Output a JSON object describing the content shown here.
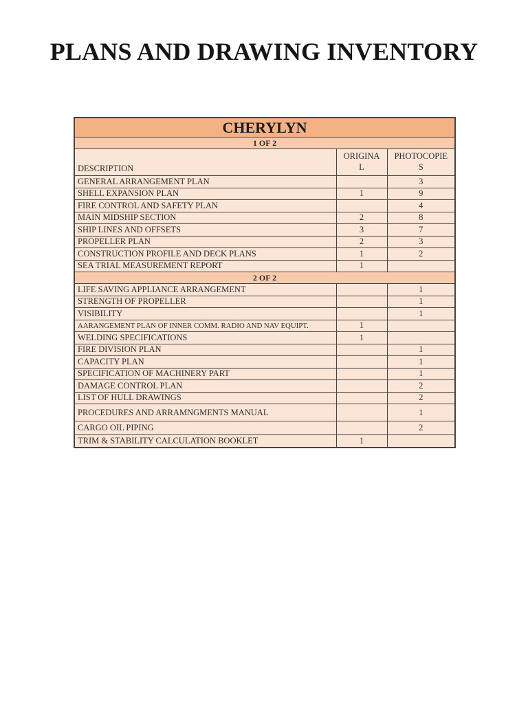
{
  "page": {
    "title": "PLANS AND DRAWING INVENTORY"
  },
  "table": {
    "vessel_name": "CHERYLYN",
    "columns": {
      "description": "DESCRIPTION",
      "original": "ORIGINAL",
      "photocopies": "PHOTOCOPIES"
    },
    "colors": {
      "vessel_header_bg": "#F4B183",
      "section_bg": "#F8CBAD",
      "row_bg": "#FBE5D6",
      "border": "#444444"
    },
    "sections": [
      {
        "label": "1 OF 2",
        "rows": [
          {
            "description": "GENERAL ARRANGEMENT PLAN",
            "original": "",
            "photocopies": "3"
          },
          {
            "description": "SHELL EXPANSION PLAN",
            "original": "1",
            "photocopies": "9"
          },
          {
            "description": "FIRE CONTROL AND SAFETY PLAN",
            "original": "",
            "photocopies": "4"
          },
          {
            "description": "MAIN MIDSHIP SECTION",
            "original": "2",
            "photocopies": "8"
          },
          {
            "description": "SHIP LINES AND OFFSETS",
            "original": "3",
            "photocopies": "7"
          },
          {
            "description": "PROPELLER PLAN",
            "original": "2",
            "photocopies": "3"
          },
          {
            "description": "CONSTRUCTION PROFILE AND DECK PLANS",
            "original": "1",
            "photocopies": "2"
          },
          {
            "description": "SEA TRIAL MEASUREMENT REPORT",
            "original": "1",
            "photocopies": ""
          }
        ]
      },
      {
        "label": "2 OF 2",
        "rows": [
          {
            "description": "LIFE SAVING APPLIANCE ARRANGEMENT",
            "original": "",
            "photocopies": "1"
          },
          {
            "description": "STRENGTH OF PROPELLER",
            "original": "",
            "photocopies": "1"
          },
          {
            "description": "VISIBILITY",
            "original": "",
            "photocopies": "1"
          },
          {
            "description": "AARANGEMENT PLAN OF INNER COMM. RADIO AND NAV EQUIPT.",
            "original": "1",
            "photocopies": "",
            "small": true
          },
          {
            "description": "WELDING SPECIFICATIONS",
            "original": "1",
            "photocopies": ""
          },
          {
            "description": "FIRE DIVISION PLAN",
            "original": "",
            "photocopies": "1"
          },
          {
            "description": "CAPACITY PLAN",
            "original": "",
            "photocopies": "1"
          },
          {
            "description": "SPECIFICATION OF MACHINERY PART",
            "original": "",
            "photocopies": "1"
          },
          {
            "description": "DAMAGE CONTROL PLAN",
            "original": "",
            "photocopies": "2"
          },
          {
            "description": "LIST OF HULL DRAWINGS",
            "original": "",
            "photocopies": "2"
          },
          {
            "description": "PROCEDURES AND ARRAMNGMENTS MANUAL",
            "original": "",
            "photocopies": "1",
            "tall": 1
          },
          {
            "description": "CARGO OIL PIPING",
            "original": "",
            "photocopies": "2",
            "tall": 2
          },
          {
            "description": "TRIM & STABILITY CALCULATION BOOKLET",
            "original": "1",
            "photocopies": ""
          }
        ]
      }
    ]
  }
}
